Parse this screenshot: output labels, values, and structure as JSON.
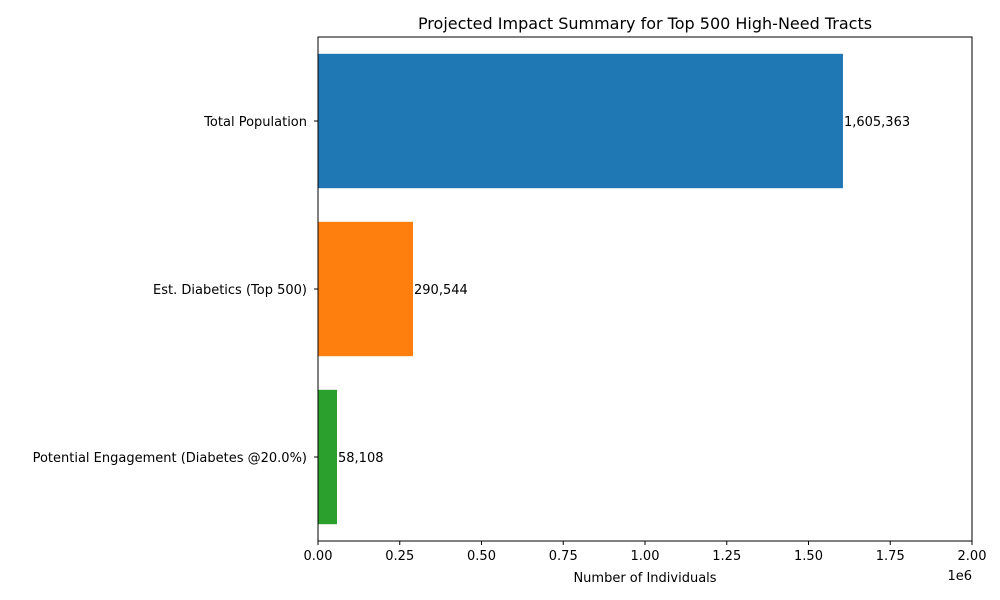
{
  "chart_data": {
    "type": "bar",
    "orientation": "horizontal",
    "title": "Projected Impact Summary for Top 500 High-Need Tracts",
    "xlabel": "Number of Individuals",
    "ylabel": "",
    "x_offset_label": "1e6",
    "xlim": [
      0,
      2000000
    ],
    "x_tick_values": [
      0,
      250000,
      500000,
      750000,
      1000000,
      1250000,
      1500000,
      1750000,
      2000000
    ],
    "x_tick_labels": [
      "0.00",
      "0.25",
      "0.50",
      "0.75",
      "1.00",
      "1.25",
      "1.50",
      "1.75",
      "2.00"
    ],
    "categories": [
      "Total Population",
      "Est. Diabetics (Top 500)",
      "Potential Engagement (Diabetes @20.0%)"
    ],
    "values": [
      1605363,
      290544,
      58108
    ],
    "data_labels": [
      "1,605,363",
      "290,544",
      "58,108"
    ],
    "colors": [
      "#1f77b4",
      "#ff7f0e",
      "#2ca02c"
    ],
    "grid": false,
    "legend": "none"
  }
}
